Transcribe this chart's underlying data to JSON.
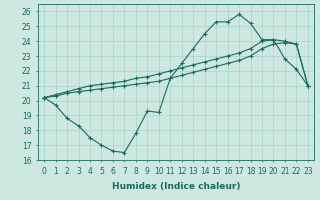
{
  "xlabel": "Humidex (Indice chaleur)",
  "background_color": "#cce8e0",
  "grid_color": "#aad4c8",
  "line_color": "#1a6b5a",
  "xlim": [
    -0.5,
    23.5
  ],
  "ylim": [
    16,
    26.5
  ],
  "yticks": [
    16,
    17,
    18,
    19,
    20,
    21,
    22,
    23,
    24,
    25,
    26
  ],
  "xticks": [
    0,
    1,
    2,
    3,
    4,
    5,
    6,
    7,
    8,
    9,
    10,
    11,
    12,
    13,
    14,
    15,
    16,
    17,
    18,
    19,
    20,
    21,
    22,
    23
  ],
  "line1_x": [
    0,
    1,
    2,
    3,
    4,
    5,
    6,
    7,
    8,
    9,
    10,
    11,
    12,
    13,
    14,
    15,
    16,
    17,
    18,
    19,
    20,
    21,
    22,
    23
  ],
  "line1_y": [
    20.2,
    19.7,
    18.8,
    18.3,
    17.5,
    17.0,
    16.6,
    16.5,
    17.8,
    19.3,
    19.2,
    21.5,
    22.5,
    23.5,
    24.5,
    25.3,
    25.3,
    25.8,
    25.2,
    24.1,
    24.1,
    22.8,
    22.1,
    21.0
  ],
  "line2_x": [
    0,
    1,
    2,
    3,
    4,
    5,
    6,
    7,
    8,
    9,
    10,
    11,
    12,
    13,
    14,
    15,
    16,
    17,
    18,
    19,
    20,
    21,
    22,
    23
  ],
  "line2_y": [
    20.2,
    20.4,
    20.6,
    20.8,
    21.0,
    21.1,
    21.2,
    21.3,
    21.5,
    21.6,
    21.8,
    22.0,
    22.2,
    22.4,
    22.6,
    22.8,
    23.0,
    23.2,
    23.5,
    24.0,
    24.1,
    24.0,
    23.8,
    21.0
  ],
  "line3_x": [
    0,
    1,
    2,
    3,
    4,
    5,
    6,
    7,
    8,
    9,
    10,
    11,
    12,
    13,
    14,
    15,
    16,
    17,
    18,
    19,
    20,
    21,
    22,
    23
  ],
  "line3_y": [
    20.2,
    20.3,
    20.5,
    20.6,
    20.7,
    20.8,
    20.9,
    21.0,
    21.1,
    21.2,
    21.3,
    21.5,
    21.7,
    21.9,
    22.1,
    22.3,
    22.5,
    22.7,
    23.0,
    23.5,
    23.8,
    23.9,
    23.8,
    21.0
  ]
}
